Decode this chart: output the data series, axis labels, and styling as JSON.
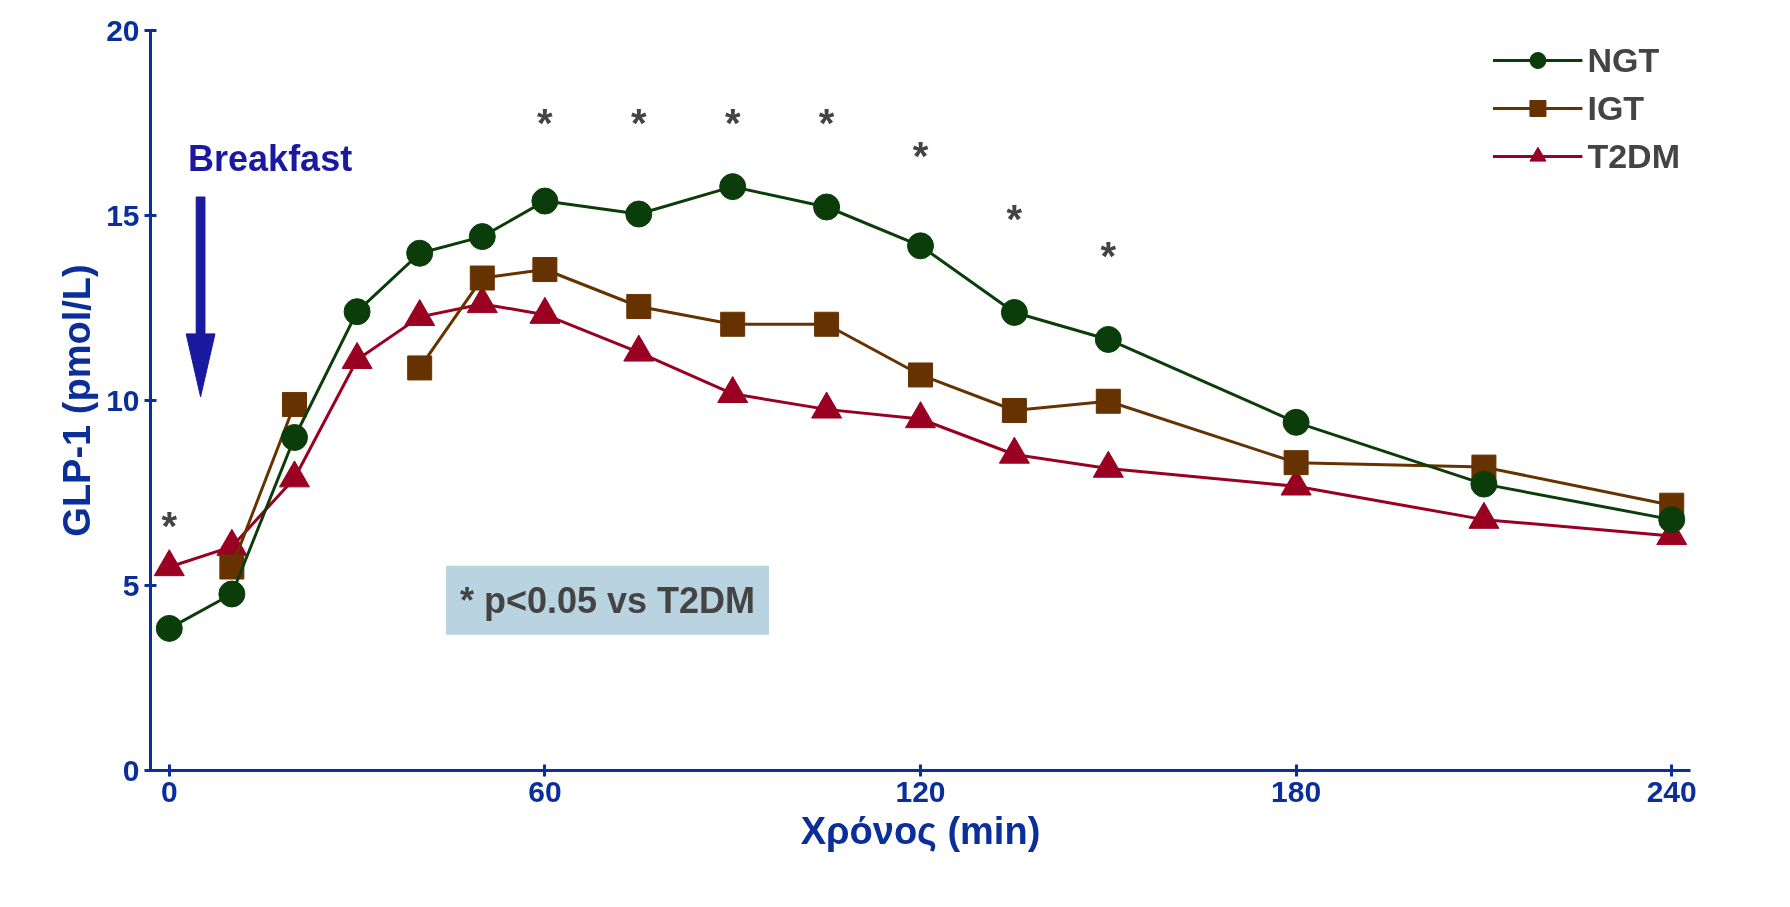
{
  "chart_data": {
    "type": "line",
    "xlabel": "Χρόνος (min)",
    "ylabel": "GLP-1 (pmol/L)",
    "x": [
      0,
      10,
      20,
      30,
      40,
      50,
      60,
      75,
      90,
      105,
      120,
      135,
      150,
      180,
      210,
      240
    ],
    "xlim": [
      -3,
      243
    ],
    "ylim": [
      0,
      20
    ],
    "xticks": [
      0,
      60,
      120,
      180,
      240
    ],
    "yticks": [
      0,
      5,
      10,
      15,
      20
    ],
    "grid": false,
    "legend": "top right",
    "line_style": "solid",
    "series": [
      {
        "name": "NGT",
        "color": "#0b3d0b",
        "marker": "circle",
        "values": [
          3.84,
          4.77,
          9.0,
          12.4,
          13.98,
          14.43,
          15.39,
          15.04,
          15.78,
          15.23,
          14.18,
          12.38,
          11.65,
          9.41,
          7.74,
          6.78
        ]
      },
      {
        "name": "IGT",
        "color": "#663300",
        "marker": "square",
        "values": [
          null,
          5.5,
          9.89,
          null,
          10.88,
          13.31,
          13.54,
          12.54,
          12.06,
          12.06,
          10.69,
          9.73,
          9.98,
          8.32,
          8.2,
          7.17
        ]
      },
      {
        "name": "T2DM",
        "color": "#990022",
        "marker": "triangle",
        "values": [
          5.5,
          6.05,
          7.9,
          11.1,
          12.26,
          12.61,
          12.32,
          11.3,
          10.18,
          9.76,
          9.5,
          8.54,
          8.16,
          7.68,
          6.78,
          6.34
        ]
      }
    ],
    "annotations": [
      "Breakfast",
      "* p<0.05 vs T2DM",
      "*",
      "*",
      "*",
      "*",
      "*",
      "*",
      "*",
      "*"
    ]
  }
}
